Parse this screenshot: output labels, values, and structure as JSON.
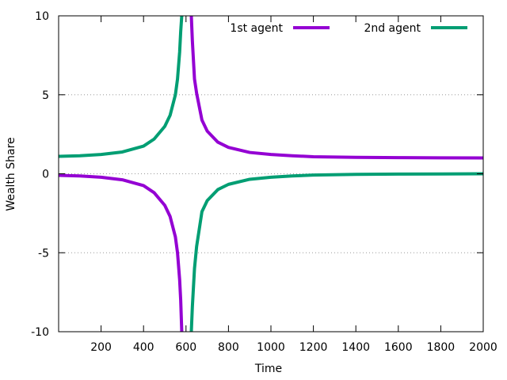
{
  "chart_data": {
    "type": "line",
    "title": "",
    "xlabel": "Time",
    "ylabel": "Wealth Share",
    "xlim": [
      0,
      2000
    ],
    "ylim": [
      -10,
      10
    ],
    "x_ticks": [
      200,
      400,
      600,
      800,
      1000,
      1200,
      1400,
      1600,
      1800,
      2000
    ],
    "x_tick_labels": [
      "200",
      "400",
      "600",
      "800",
      "1000",
      "1200",
      "1400",
      "1600",
      "1800",
      "2000"
    ],
    "y_ticks": [
      -10,
      -5,
      0,
      5,
      10
    ],
    "y_tick_labels": [
      "-10",
      "-5",
      "0",
      "5",
      "10"
    ],
    "grid": "horizontal dotted at y-ticks",
    "legend_position": "top-right",
    "asymptote_x": 600,
    "series": [
      {
        "name": "1st agent",
        "color": "#9400D3",
        "points": [
          [
            0,
            -0.1
          ],
          [
            100,
            -0.14
          ],
          [
            200,
            -0.22
          ],
          [
            300,
            -0.38
          ],
          [
            400,
            -0.75
          ],
          [
            450,
            -1.2
          ],
          [
            500,
            -2.0
          ],
          [
            525,
            -2.7
          ],
          [
            550,
            -4.0
          ],
          [
            560,
            -5.0
          ],
          [
            570,
            -6.7
          ],
          [
            575,
            -8.0
          ],
          [
            580,
            -10.0
          ],
          null,
          [
            625,
            10.0
          ],
          [
            630,
            8.4
          ],
          [
            640,
            6.0
          ],
          [
            650,
            5.1
          ],
          [
            675,
            3.4
          ],
          [
            700,
            2.7
          ],
          [
            750,
            2.0
          ],
          [
            800,
            1.67
          ],
          [
            900,
            1.35
          ],
          [
            1000,
            1.22
          ],
          [
            1100,
            1.14
          ],
          [
            1200,
            1.08
          ],
          [
            1400,
            1.04
          ],
          [
            1600,
            1.02
          ],
          [
            1800,
            1.01
          ],
          [
            2000,
            1.0
          ]
        ]
      },
      {
        "name": "2nd agent",
        "color": "#009E73",
        "points": [
          [
            0,
            1.1
          ],
          [
            100,
            1.14
          ],
          [
            200,
            1.22
          ],
          [
            300,
            1.38
          ],
          [
            400,
            1.75
          ],
          [
            450,
            2.2
          ],
          [
            500,
            3.0
          ],
          [
            525,
            3.7
          ],
          [
            550,
            5.0
          ],
          [
            560,
            6.0
          ],
          [
            570,
            7.7
          ],
          [
            575,
            9.0
          ],
          [
            580,
            10.0
          ],
          null,
          [
            625,
            -10.0
          ],
          [
            630,
            -8.4
          ],
          [
            640,
            -6.0
          ],
          [
            650,
            -4.6
          ],
          [
            675,
            -2.4
          ],
          [
            700,
            -1.7
          ],
          [
            750,
            -1.0
          ],
          [
            800,
            -0.67
          ],
          [
            900,
            -0.35
          ],
          [
            1000,
            -0.22
          ],
          [
            1100,
            -0.14
          ],
          [
            1200,
            -0.08
          ],
          [
            1400,
            -0.04
          ],
          [
            1600,
            -0.02
          ],
          [
            1800,
            -0.01
          ],
          [
            2000,
            0.0
          ]
        ]
      }
    ]
  }
}
